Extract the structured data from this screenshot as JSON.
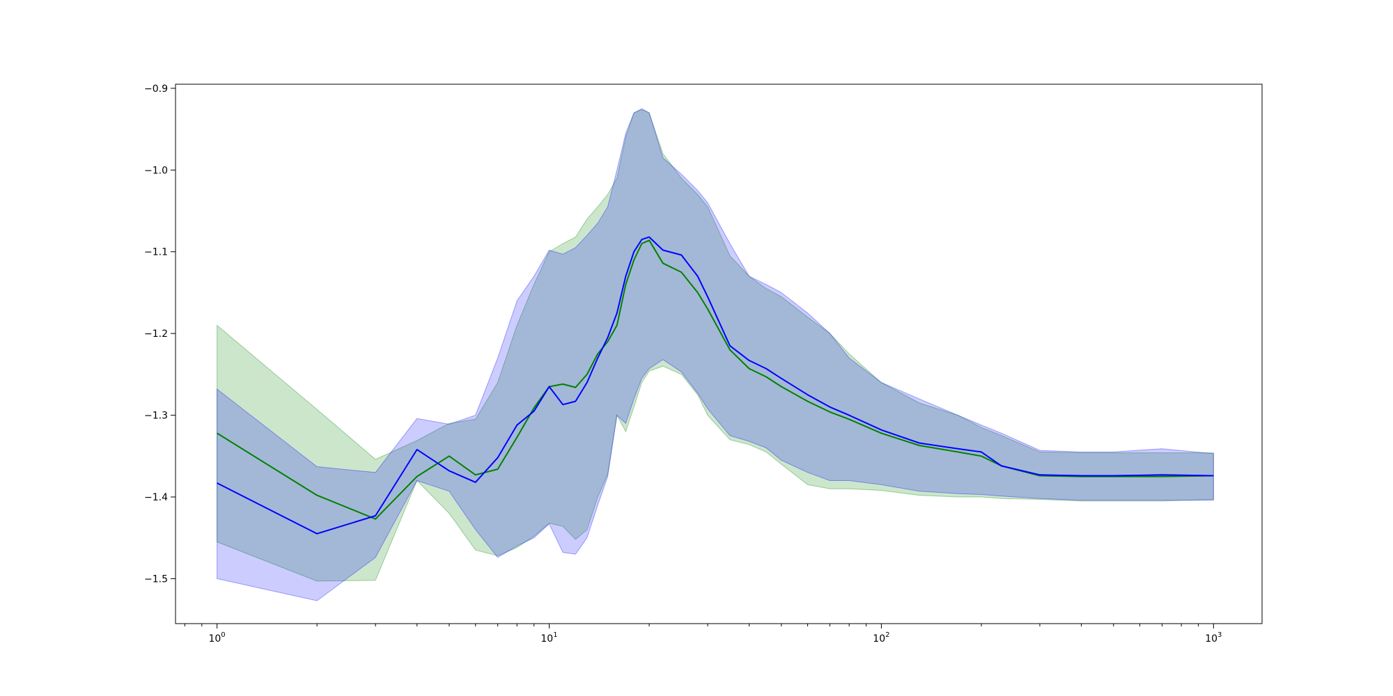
{
  "chart_data": {
    "type": "line",
    "title": "",
    "xlabel": "",
    "ylabel": "",
    "x_scale": "log",
    "xlim": [
      0.75,
      1400
    ],
    "ylim": [
      -1.555,
      -0.895
    ],
    "x_ticks": [
      {
        "value": 1,
        "base": "10",
        "exp": "0"
      },
      {
        "value": 10,
        "base": "10",
        "exp": "1"
      },
      {
        "value": 100,
        "base": "10",
        "exp": "2"
      },
      {
        "value": 1000,
        "base": "10",
        "exp": "3"
      }
    ],
    "y_ticks": [
      {
        "value": -0.9,
        "label": "−0.9"
      },
      {
        "value": -1.0,
        "label": "−1.0"
      },
      {
        "value": -1.1,
        "label": "−1.1"
      },
      {
        "value": -1.2,
        "label": "−1.2"
      },
      {
        "value": -1.3,
        "label": "−1.3"
      },
      {
        "value": -1.4,
        "label": "−1.4"
      },
      {
        "value": -1.5,
        "label": "−1.5"
      }
    ],
    "grid": false,
    "legend": "none",
    "series": [
      {
        "color": "#008000",
        "band_color": "#008000",
        "band_opacity": 0.2,
        "x": [
          1,
          2,
          3,
          4,
          5,
          6,
          7,
          8,
          9,
          10,
          11,
          12,
          13,
          14,
          15,
          16,
          17,
          18,
          19,
          20,
          22,
          25,
          28,
          30,
          35,
          40,
          45,
          50,
          60,
          70,
          80,
          100,
          130,
          170,
          200,
          230,
          300,
          400,
          500,
          700,
          1000
        ],
        "y": [
          -1.322,
          -1.398,
          -1.427,
          -1.375,
          -1.35,
          -1.373,
          -1.366,
          -1.327,
          -1.291,
          -1.265,
          -1.262,
          -1.266,
          -1.25,
          -1.225,
          -1.21,
          -1.19,
          -1.14,
          -1.11,
          -1.09,
          -1.086,
          -1.114,
          -1.125,
          -1.15,
          -1.17,
          -1.22,
          -1.243,
          -1.253,
          -1.265,
          -1.283,
          -1.296,
          -1.305,
          -1.322,
          -1.337,
          -1.345,
          -1.35,
          -1.362,
          -1.374,
          -1.375,
          -1.375,
          -1.375,
          -1.374
        ],
        "lower": [
          -1.455,
          -1.503,
          -1.502,
          -1.38,
          -1.42,
          -1.465,
          -1.472,
          -1.462,
          -1.448,
          -1.432,
          -1.436,
          -1.452,
          -1.44,
          -1.4,
          -1.372,
          -1.3,
          -1.32,
          -1.29,
          -1.26,
          -1.246,
          -1.24,
          -1.25,
          -1.275,
          -1.3,
          -1.33,
          -1.336,
          -1.345,
          -1.36,
          -1.385,
          -1.39,
          -1.39,
          -1.392,
          -1.398,
          -1.4,
          -1.4,
          -1.402,
          -1.403,
          -1.405,
          -1.405,
          -1.405,
          -1.403
        ],
        "upper": [
          -1.19,
          -1.293,
          -1.354,
          -1.331,
          -1.31,
          -1.305,
          -1.26,
          -1.19,
          -1.14,
          -1.1,
          -1.09,
          -1.082,
          -1.06,
          -1.045,
          -1.03,
          -1.01,
          -0.96,
          -0.93,
          -0.926,
          -0.93,
          -0.98,
          -1.01,
          -1.03,
          -1.045,
          -1.105,
          -1.13,
          -1.145,
          -1.155,
          -1.18,
          -1.2,
          -1.225,
          -1.26,
          -1.285,
          -1.3,
          -1.315,
          -1.325,
          -1.345,
          -1.346,
          -1.346,
          -1.346,
          -1.346
        ]
      },
      {
        "color": "#0000ff",
        "band_color": "#0000ff",
        "band_opacity": 0.2,
        "x": [
          1,
          2,
          3,
          4,
          5,
          6,
          7,
          8,
          9,
          10,
          11,
          12,
          13,
          14,
          15,
          16,
          17,
          18,
          19,
          20,
          22,
          25,
          28,
          30,
          35,
          40,
          45,
          50,
          60,
          70,
          80,
          100,
          130,
          170,
          200,
          230,
          300,
          400,
          500,
          700,
          1000
        ],
        "y": [
          -1.383,
          -1.445,
          -1.423,
          -1.342,
          -1.368,
          -1.382,
          -1.352,
          -1.312,
          -1.295,
          -1.265,
          -1.287,
          -1.283,
          -1.26,
          -1.23,
          -1.205,
          -1.175,
          -1.13,
          -1.1,
          -1.085,
          -1.082,
          -1.098,
          -1.104,
          -1.13,
          -1.155,
          -1.215,
          -1.233,
          -1.243,
          -1.255,
          -1.275,
          -1.29,
          -1.3,
          -1.318,
          -1.334,
          -1.341,
          -1.345,
          -1.362,
          -1.373,
          -1.374,
          -1.374,
          -1.373,
          -1.374
        ],
        "lower": [
          -1.5,
          -1.527,
          -1.474,
          -1.38,
          -1.393,
          -1.44,
          -1.474,
          -1.46,
          -1.45,
          -1.433,
          -1.468,
          -1.47,
          -1.45,
          -1.41,
          -1.375,
          -1.3,
          -1.31,
          -1.28,
          -1.255,
          -1.243,
          -1.232,
          -1.247,
          -1.273,
          -1.292,
          -1.325,
          -1.332,
          -1.34,
          -1.355,
          -1.37,
          -1.38,
          -1.38,
          -1.385,
          -1.393,
          -1.396,
          -1.397,
          -1.399,
          -1.402,
          -1.404,
          -1.404,
          -1.404,
          -1.404
        ],
        "upper": [
          -1.268,
          -1.363,
          -1.37,
          -1.304,
          -1.311,
          -1.3,
          -1.23,
          -1.16,
          -1.13,
          -1.098,
          -1.103,
          -1.095,
          -1.08,
          -1.065,
          -1.045,
          -1.0,
          -0.955,
          -0.93,
          -0.925,
          -0.93,
          -0.985,
          -1.005,
          -1.025,
          -1.04,
          -1.09,
          -1.13,
          -1.14,
          -1.15,
          -1.175,
          -1.2,
          -1.23,
          -1.26,
          -1.28,
          -1.3,
          -1.312,
          -1.322,
          -1.343,
          -1.345,
          -1.345,
          -1.341,
          -1.347
        ]
      }
    ]
  }
}
